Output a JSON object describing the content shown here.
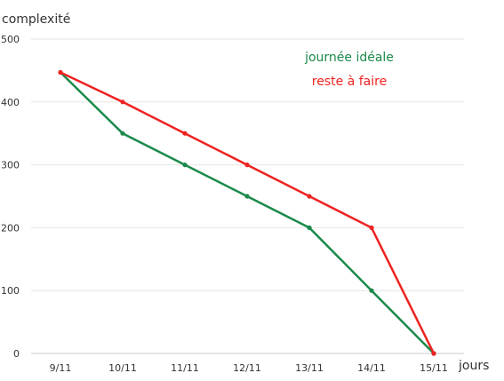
{
  "chart_data": {
    "type": "line",
    "ylabel": "complexité",
    "xlabel": "jours",
    "categories": [
      "9/11",
      "10/11",
      "11/11",
      "12/11",
      "13/11",
      "14/11",
      "15/11"
    ],
    "ylim": [
      0,
      500
    ],
    "yticks": [
      0,
      100,
      200,
      300,
      400,
      500
    ],
    "grid": true,
    "legend_position": "top-right",
    "series": [
      {
        "name": "journée idéale",
        "color": "#1a8a4a",
        "values": [
          447,
          350,
          300,
          250,
          200,
          100,
          0
        ]
      },
      {
        "name": "reste à faire",
        "color": "#ee2222",
        "values": [
          447,
          400,
          350,
          300,
          250,
          200,
          0
        ]
      }
    ]
  }
}
